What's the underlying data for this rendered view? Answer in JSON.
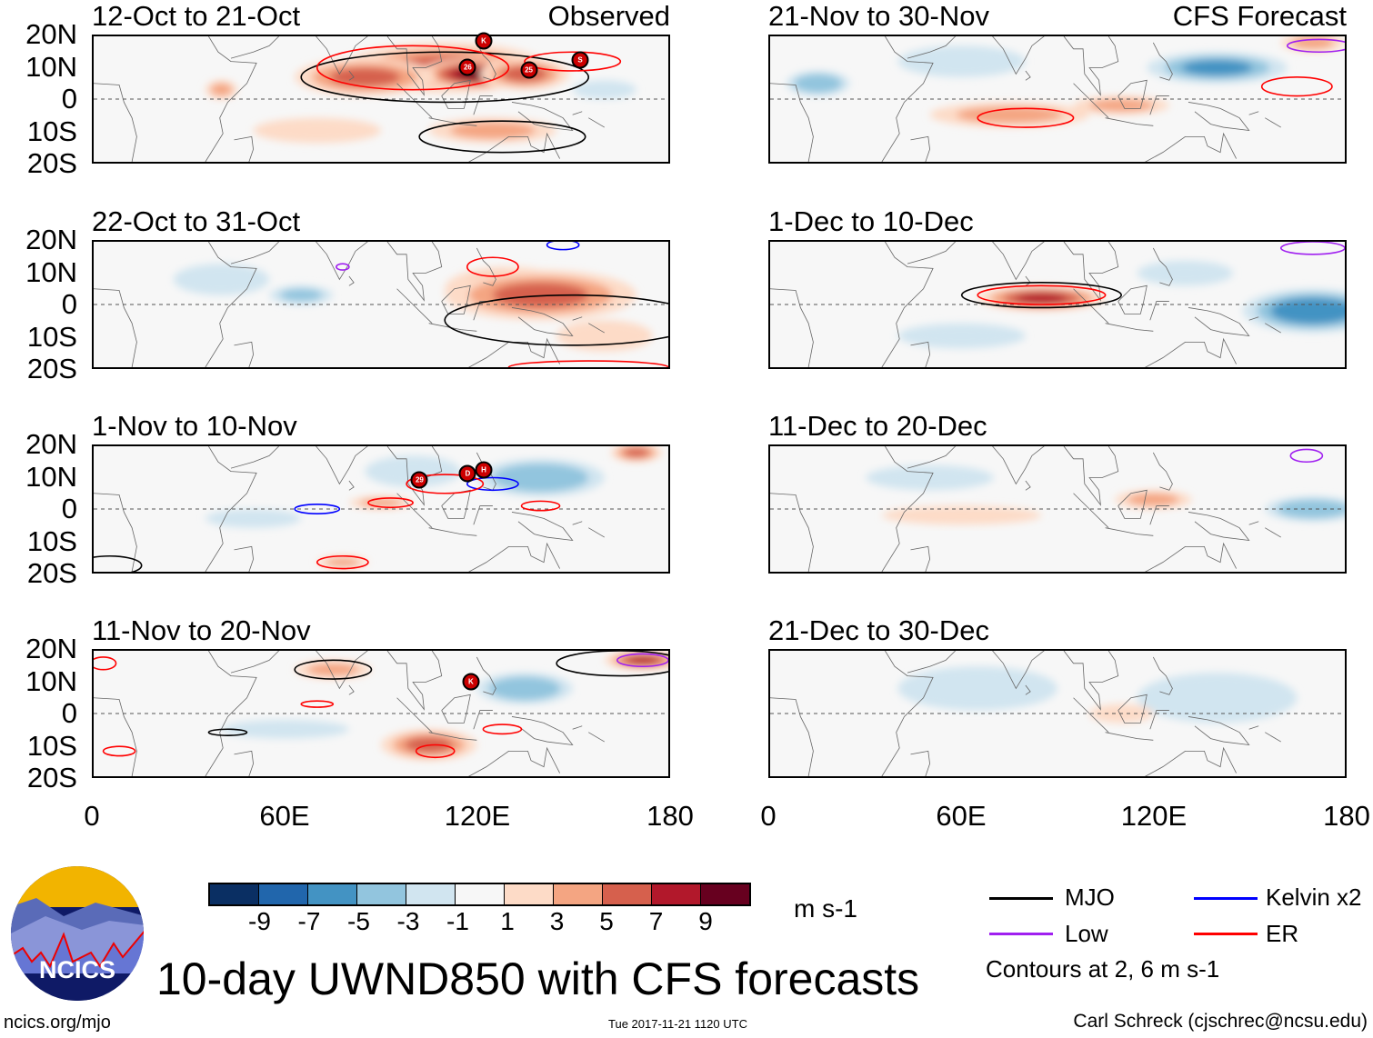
{
  "headers": {
    "observed": "Observed",
    "forecast": "CFS Forecast"
  },
  "lat_labels": [
    "20N",
    "10N",
    "0",
    "10S",
    "20S"
  ],
  "lon_labels": [
    "0",
    "60E",
    "120E",
    "180"
  ],
  "panels": [
    {
      "title": "12-Oct to 21-Oct",
      "col": 0,
      "row": 0,
      "shading": [
        [
          110,
          10,
          6,
          32,
          8
        ],
        [
          120,
          8,
          9,
          18,
          5
        ],
        [
          85,
          7,
          5,
          22,
          6
        ],
        [
          135,
          8,
          5,
          14,
          5
        ],
        [
          40,
          3,
          3,
          5,
          3
        ],
        [
          160,
          3,
          -3,
          10,
          3
        ],
        [
          70,
          -10,
          2,
          20,
          4
        ],
        [
          125,
          -10,
          3,
          20,
          4
        ]
      ],
      "contours": [
        [
          "MJO",
          110,
          7,
          45,
          8
        ],
        [
          "MJO",
          128,
          -12,
          26,
          5
        ],
        [
          "ER",
          100,
          10,
          30,
          7
        ],
        [
          "ER",
          150,
          12,
          15,
          3
        ]
      ],
      "storms": [
        [
          "K",
          122,
          18
        ],
        [
          "26",
          117,
          10
        ],
        [
          "25",
          136,
          9
        ],
        [
          "S",
          152,
          12
        ]
      ]
    },
    {
      "title": "22-Oct to 31-Oct",
      "col": 0,
      "row": 1,
      "shading": [
        [
          130,
          5,
          7,
          20,
          7
        ],
        [
          140,
          3,
          5,
          30,
          8
        ],
        [
          65,
          3,
          -4,
          10,
          3
        ],
        [
          40,
          8,
          -2,
          15,
          5
        ],
        [
          160,
          -10,
          2,
          15,
          5
        ]
      ],
      "contours": [
        [
          "MJO",
          150,
          -5,
          40,
          8
        ],
        [
          "ER",
          125,
          12,
          8,
          3
        ],
        [
          "Kelvin",
          147,
          19,
          5,
          1.5
        ],
        [
          "Low",
          78,
          12,
          2,
          1
        ],
        [
          "ER",
          155,
          -20,
          25,
          2
        ]
      ],
      "storms": []
    },
    {
      "title": "1-Nov to 10-Nov",
      "col": 0,
      "row": 2,
      "shading": [
        [
          140,
          10,
          -5,
          20,
          6
        ],
        [
          100,
          12,
          -3,
          15,
          5
        ],
        [
          90,
          2,
          3,
          10,
          2
        ],
        [
          50,
          -3,
          -2,
          15,
          3
        ],
        [
          170,
          18,
          5,
          8,
          3
        ],
        [
          78,
          -17,
          3,
          8,
          2
        ]
      ],
      "contours": [
        [
          "Kelvin",
          70,
          0,
          7,
          1.5
        ],
        [
          "Kelvin",
          125,
          8,
          8,
          2
        ],
        [
          "ER",
          110,
          8,
          12,
          3
        ],
        [
          "ER",
          140,
          1,
          6,
          1.5
        ],
        [
          "ER",
          78,
          -17,
          8,
          2
        ],
        [
          "ER",
          93,
          2,
          7,
          1.5
        ],
        [
          "MJO",
          5,
          -18,
          10,
          3
        ]
      ],
      "storms": [
        [
          "29",
          102,
          9
        ],
        [
          "D",
          117,
          11
        ],
        [
          "H",
          122,
          12
        ]
      ]
    },
    {
      "title": "11-Nov to 20-Nov",
      "col": 0,
      "row": 3,
      "shading": [
        [
          135,
          8,
          -5,
          15,
          5
        ],
        [
          105,
          -10,
          5,
          15,
          5
        ],
        [
          172,
          17,
          7,
          12,
          3
        ],
        [
          75,
          14,
          3,
          12,
          3
        ],
        [
          60,
          -5,
          -2,
          20,
          3
        ]
      ],
      "contours": [
        [
          "MJO",
          75,
          14,
          12,
          3
        ],
        [
          "MJO",
          165,
          16,
          20,
          4
        ],
        [
          "MJO",
          42,
          -6,
          6,
          1
        ],
        [
          "ER",
          107,
          -12,
          6,
          2
        ],
        [
          "ER",
          8,
          -12,
          5,
          1.5
        ],
        [
          "ER",
          3,
          16,
          4,
          2
        ],
        [
          "ER",
          128,
          -5,
          6,
          1.5
        ],
        [
          "ER",
          70,
          3,
          5,
          1
        ],
        [
          "Low",
          172,
          17,
          8,
          2
        ]
      ],
      "storms": [
        [
          "K",
          118,
          10
        ]
      ]
    },
    {
      "title": "21-Nov to 30-Nov",
      "col": 1,
      "row": 0,
      "shading": [
        [
          140,
          10,
          -6,
          22,
          5
        ],
        [
          15,
          5,
          -5,
          10,
          4
        ],
        [
          60,
          12,
          -3,
          20,
          5
        ],
        [
          75,
          -5,
          3,
          25,
          4
        ],
        [
          110,
          -2,
          3,
          15,
          3
        ],
        [
          170,
          18,
          3,
          10,
          3
        ]
      ],
      "contours": [
        [
          "ER",
          80,
          -6,
          15,
          3
        ],
        [
          "ER",
          165,
          4,
          11,
          3
        ],
        [
          "Low",
          172,
          17,
          10,
          2
        ]
      ],
      "storms": []
    },
    {
      "title": "1-Dec to 10-Dec",
      "col": 1,
      "row": 1,
      "shading": [
        [
          85,
          2,
          7,
          20,
          4
        ],
        [
          170,
          -2,
          -7,
          22,
          7
        ],
        [
          60,
          -10,
          -2,
          20,
          4
        ],
        [
          130,
          10,
          -2,
          15,
          4
        ]
      ],
      "contours": [
        [
          "MJO",
          85,
          3,
          25,
          4
        ],
        [
          "ER",
          85,
          3,
          20,
          3
        ],
        [
          "Low",
          170,
          18,
          10,
          2
        ]
      ],
      "storms": []
    },
    {
      "title": "11-Dec to 20-Dec",
      "col": 1,
      "row": 2,
      "shading": [
        [
          170,
          0,
          -5,
          15,
          4
        ],
        [
          120,
          3,
          3,
          12,
          3
        ],
        [
          60,
          -2,
          2,
          25,
          3
        ],
        [
          50,
          10,
          -2,
          20,
          4
        ]
      ],
      "contours": [
        [
          "Low",
          168,
          17,
          5,
          2
        ]
      ],
      "storms": []
    },
    {
      "title": "21-Dec to 30-Dec",
      "col": 1,
      "row": 3,
      "shading": [
        [
          65,
          8,
          -3,
          25,
          7
        ],
        [
          140,
          5,
          -3,
          25,
          8
        ],
        [
          110,
          0,
          2,
          10,
          3
        ]
      ],
      "contours": [],
      "storms": []
    }
  ],
  "colorbar": {
    "colors": [
      "#0a2f63",
      "#2166ac",
      "#4393c3",
      "#92c5de",
      "#d1e5f0",
      "#f7f7f7",
      "#fddbc7",
      "#f4a582",
      "#d6604d",
      "#b2182b",
      "#67001f"
    ],
    "labels": [
      "-9",
      "-7",
      "-5",
      "-3",
      "-1",
      "1",
      "3",
      "5",
      "7",
      "9"
    ],
    "units": "m s-1"
  },
  "legend": {
    "items": [
      {
        "label": "MJO",
        "color": "#000000"
      },
      {
        "label": "Kelvin x2",
        "color": "#0000ff"
      },
      {
        "label": "Low",
        "color": "#a020f0"
      },
      {
        "label": "ER",
        "color": "#ff0000"
      }
    ],
    "note": "Contours at 2, 6 m s-1"
  },
  "footer": {
    "title": "10-day UWND850 with CFS forecasts",
    "url": "ncics.org/mjo",
    "timestamp": "Tue 2017-11-21 1120 UTC",
    "credit": "Carl Schreck (cjschrec@ncsu.edu)",
    "logo_text": "NCICS"
  }
}
